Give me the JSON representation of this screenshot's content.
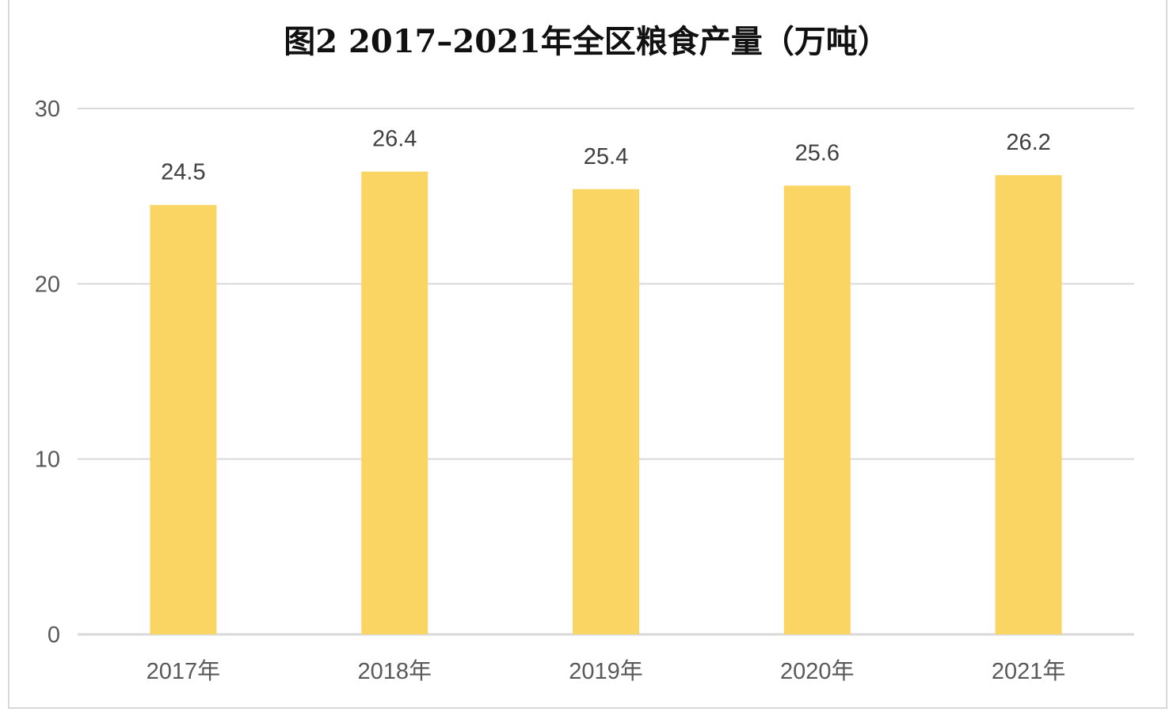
{
  "chart_data": {
    "type": "bar",
    "title": "图2  2017–2021年全区粮食产量（万吨）",
    "categories": [
      "2017年",
      "2018年",
      "2019年",
      "2020年",
      "2021年"
    ],
    "values": [
      24.5,
      26.4,
      25.4,
      25.6,
      26.2
    ],
    "value_labels": [
      "24.5",
      "26.4",
      "25.4",
      "25.6",
      "26.2"
    ],
    "xlabel": "",
    "ylabel": "",
    "ylim": [
      0,
      30
    ],
    "yticks": [
      "0",
      "10",
      "20",
      "30"
    ],
    "grid": true,
    "legend": "none",
    "bar_color": "#fad564",
    "grid_color": "#d9d9d9"
  }
}
